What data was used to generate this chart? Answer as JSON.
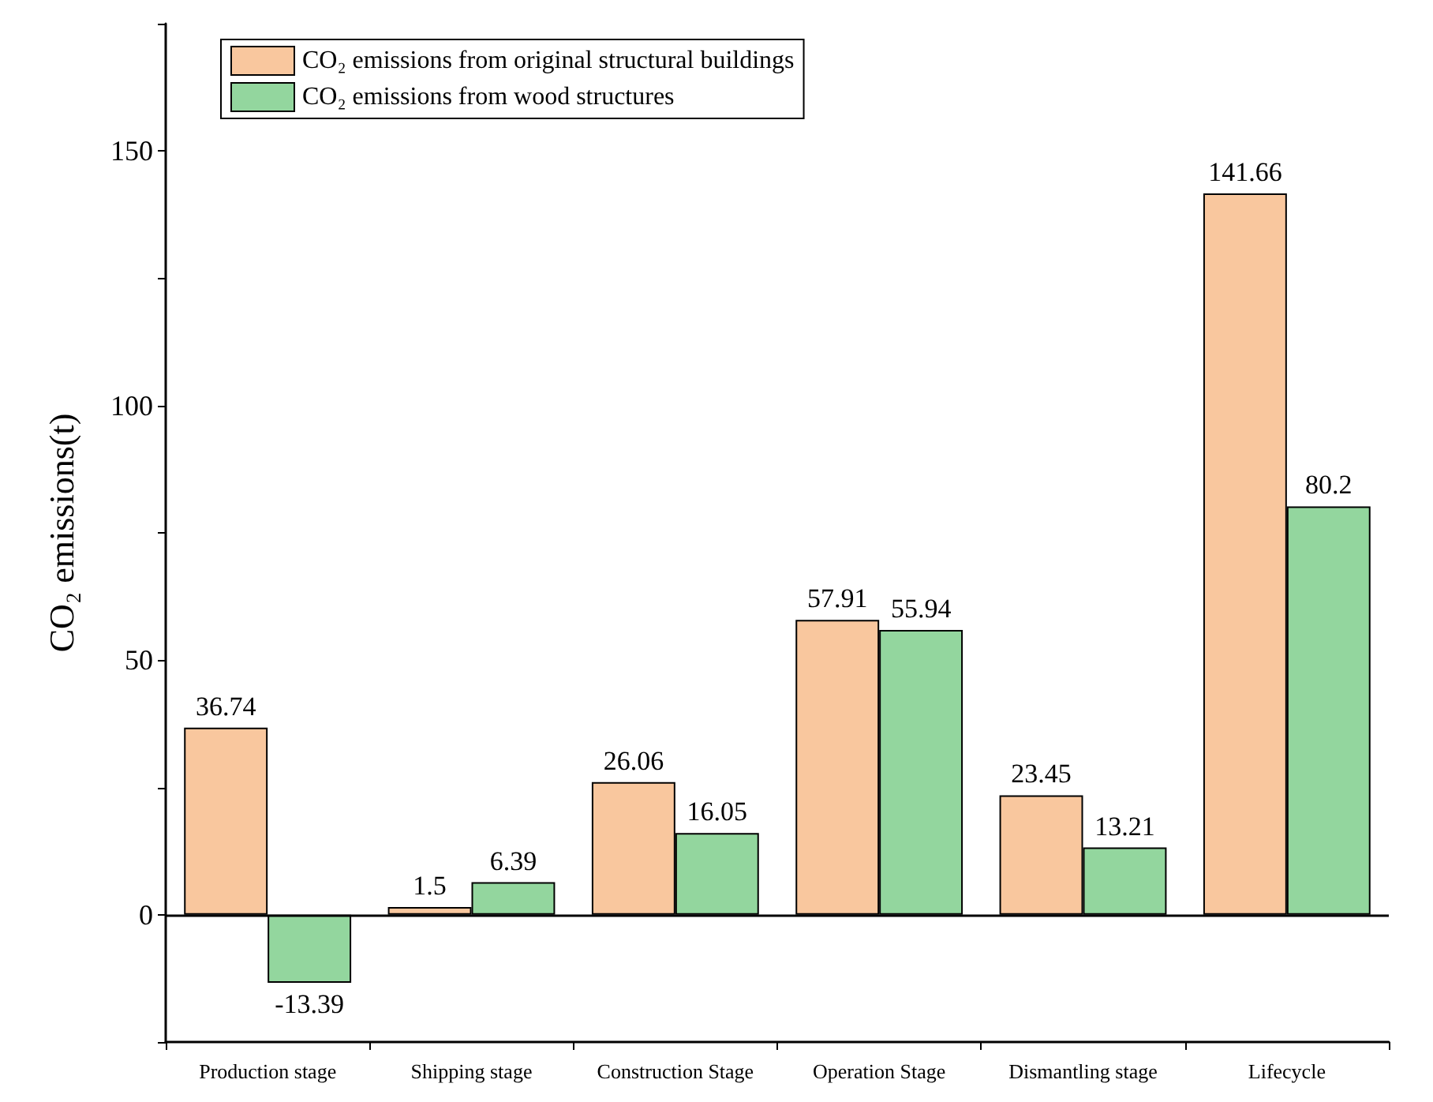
{
  "chart_data": {
    "type": "bar",
    "ylabel": "CO₂ emissions(t)",
    "categories": [
      "Production stage",
      "Shipping stage",
      "Construction Stage",
      "Operation Stage",
      "Dismantling stage",
      "Lifecycle"
    ],
    "series": [
      {
        "name": "CO₂ emissions from original structural buildings",
        "color": "#f9c79e",
        "values": [
          36.74,
          1.5,
          26.06,
          57.91,
          23.45,
          141.66
        ]
      },
      {
        "name": "CO₂ emissions from wood structures",
        "color": "#93d69e",
        "values": [
          -13.39,
          6.39,
          16.05,
          55.94,
          13.21,
          80.2
        ]
      }
    ],
    "ylim": [
      -25,
      175
    ],
    "yticks": [
      {
        "value": -25,
        "label": null
      },
      0,
      {
        "value": 25,
        "label": null
      },
      50,
      {
        "value": 75,
        "label": null
      },
      100,
      {
        "value": 125,
        "label": null
      },
      150,
      {
        "value": 175,
        "label": null
      }
    ],
    "ref_lines": [
      {
        "axis": "y",
        "value": 0,
        "color": "#000000"
      }
    ],
    "data_labels": true,
    "grid": false,
    "legend": "top left"
  }
}
